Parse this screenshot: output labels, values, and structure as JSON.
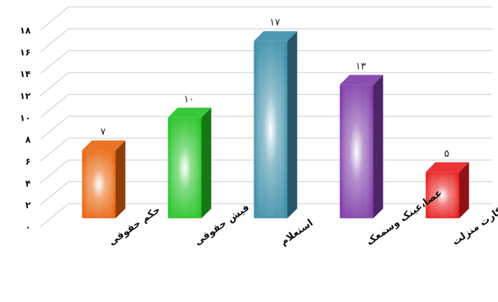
{
  "chart_data": {
    "type": "bar",
    "categories": [
      "حکم حقوقی",
      "فیش حقوقی",
      "استعلام",
      "عصا،عینک وسمعک",
      "کارت منزلت"
    ],
    "values": [
      7,
      10,
      17,
      13,
      5
    ],
    "value_labels": [
      "۷",
      "۱۰",
      "۱۷",
      "۱۳",
      "۵"
    ],
    "ylim": [
      0,
      18
    ],
    "y_ticks": [
      0,
      2,
      4,
      6,
      8,
      10,
      12,
      14,
      16,
      18
    ],
    "y_tick_labels": [
      "۰",
      "۲",
      "۴",
      "۶",
      "۸",
      "۱۰",
      "۱۲",
      "۱۴",
      "۱۶",
      "۱۸"
    ],
    "title": "",
    "xlabel": "",
    "ylabel": "",
    "grid": true,
    "legend": "none",
    "colors": [
      "#e8640c",
      "#22c222",
      "#3a8ea8",
      "#7d3aa8",
      "#e81c1c"
    ]
  }
}
